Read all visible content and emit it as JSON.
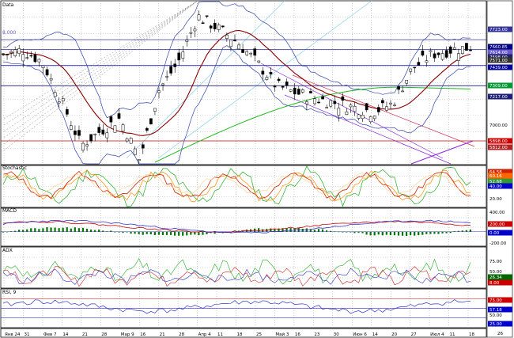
{
  "panels": {
    "main": {
      "title": "Data",
      "y_top_label": "8,000"
    },
    "stoch": {
      "title": "Stochastic"
    },
    "macd": {
      "title": "MACD"
    },
    "adx": {
      "title": "ADX"
    },
    "rsi": {
      "title": "RSI, 9"
    }
  },
  "x_labels": [
    "Янв 24",
    "31",
    "Фев 7",
    "14",
    "21",
    "28",
    "Мар 9",
    "16",
    "21",
    "28",
    "Апр 4",
    "11",
    "18",
    "25",
    "Май 3",
    "16",
    "23",
    "30",
    "Июн 6",
    "14",
    "20",
    "27",
    "Июл 4",
    "11",
    "18"
  ],
  "price_axis": {
    "levels": [
      {
        "text": "7723.00",
        "y": 7723,
        "color": "#333399"
      },
      {
        "text": "7660.85",
        "y": 7660.85,
        "color": "#000080"
      },
      {
        "text": "7614.00",
        "y": 7614,
        "color": "#6a5acd"
      },
      {
        "text": "7598.00",
        "y": 7598,
        "color": "#222266"
      },
      {
        "text": "7571.00",
        "y": 7571,
        "color": "#333333"
      },
      {
        "text": "7439.00",
        "y": 7439,
        "color": "#000099"
      },
      {
        "text": "7309.00",
        "y": 7309,
        "color": "#009933"
      },
      {
        "text": "7217.00",
        "y": 7217,
        "color": "#1f1f7a"
      },
      {
        "text": "5898.00",
        "y": 5898,
        "color": "#cc0000"
      },
      {
        "text": "5812.00",
        "y": 5812,
        "color": "#b22222"
      }
    ],
    "plain": [
      {
        "text": "7000.00",
        "y": 7000
      }
    ]
  },
  "stoch_axis": {
    "levels": [
      {
        "text": "64.58",
        "color": "#cc2200"
      },
      {
        "text": "60.16",
        "color": "#ff6600"
      },
      {
        "text": "52.68",
        "color": "#339933"
      },
      {
        "text": "40.00",
        "color": "#0000cc"
      }
    ],
    "plain": [
      {
        "text": "20.00"
      }
    ]
  },
  "macd_axis": {
    "levels": [
      {
        "text": "200.00",
        "color": "#cc0000"
      },
      {
        "text": "0.00",
        "color": "#0000cc"
      }
    ],
    "plain": [
      {
        "text": "400.00"
      },
      {
        "text": "-200.00"
      }
    ]
  },
  "adx_axis": {
    "levels": [
      {
        "text": "26.34",
        "color": "#006600"
      },
      {
        "text": "8.00",
        "color": "#cc0000"
      }
    ],
    "plain": [
      {
        "text": "75.00"
      },
      {
        "text": "50.00"
      }
    ]
  },
  "rsi_axis": {
    "levels": [
      {
        "text": "75.00",
        "color": "#cc0000"
      },
      {
        "text": "57.18",
        "color": "#0000cc"
      },
      {
        "text": "25.00",
        "color": "#0000cc"
      }
    ],
    "plain": [
      {
        "text": "50.00"
      }
    ]
  },
  "corner": {
    "text": "26"
  },
  "chart_data": {
    "type": "line",
    "x": [
      "Янв 24",
      "31",
      "Фев 7",
      "14",
      "21",
      "28",
      "Мар 9",
      "16",
      "21",
      "28",
      "Апр 4",
      "11",
      "18",
      "25",
      "Май 3",
      "16",
      "23",
      "30",
      "Июн 6",
      "14",
      "20",
      "27",
      "Июл 4",
      "11",
      "18"
    ],
    "series": [
      {
        "values": [
          7560,
          7610,
          7480,
          7050,
          6560,
          6720,
          6860,
          6400,
          7170,
          7480,
          7980,
          7850,
          7700,
          7480,
          7220,
          7140,
          7080,
          7030,
          6980,
          6930,
          7020,
          7400,
          7560,
          7610,
          7640
        ]
      }
    ],
    "ylim": [
      6350,
      8150
    ]
  }
}
